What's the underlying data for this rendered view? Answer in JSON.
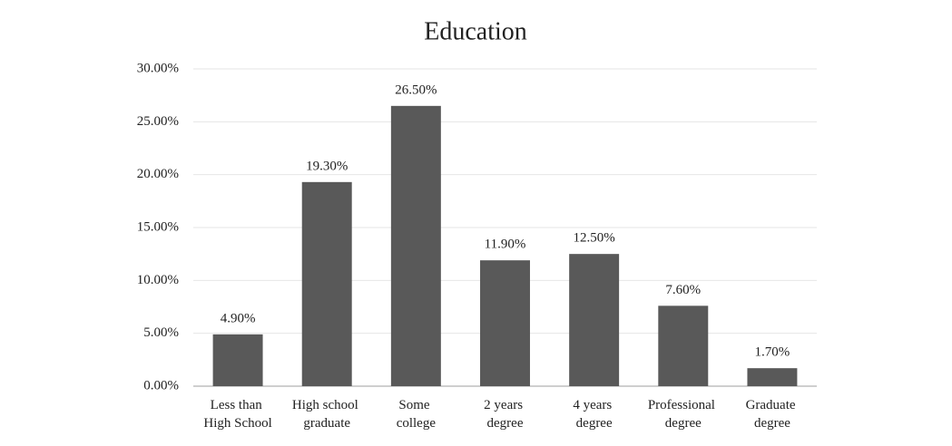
{
  "chart_data": {
    "type": "bar",
    "title": "Education",
    "categories": [
      "Less than High School",
      "High school graduate",
      "Some college",
      "2 years degree",
      "4 years degree",
      "Professional degree",
      "Graduate degree"
    ],
    "values": [
      4.9,
      19.3,
      26.5,
      11.9,
      12.5,
      7.6,
      1.7
    ],
    "value_labels": [
      "4.90%",
      "19.30%",
      "26.50%",
      "11.90%",
      "12.50%",
      "7.60%",
      "1.70%"
    ],
    "color": "#595959",
    "ylim": [
      0,
      30
    ],
    "yticks": [
      {
        "value": 0,
        "label": "0.00%"
      },
      {
        "value": 5,
        "label": "5.00%"
      },
      {
        "value": 10,
        "label": "10.00%"
      },
      {
        "value": 15,
        "label": "15.00%"
      },
      {
        "value": 20,
        "label": "20.00%"
      },
      {
        "value": 25,
        "label": "25.00%"
      },
      {
        "value": 30,
        "label": "30.00%"
      }
    ],
    "grid": true
  }
}
